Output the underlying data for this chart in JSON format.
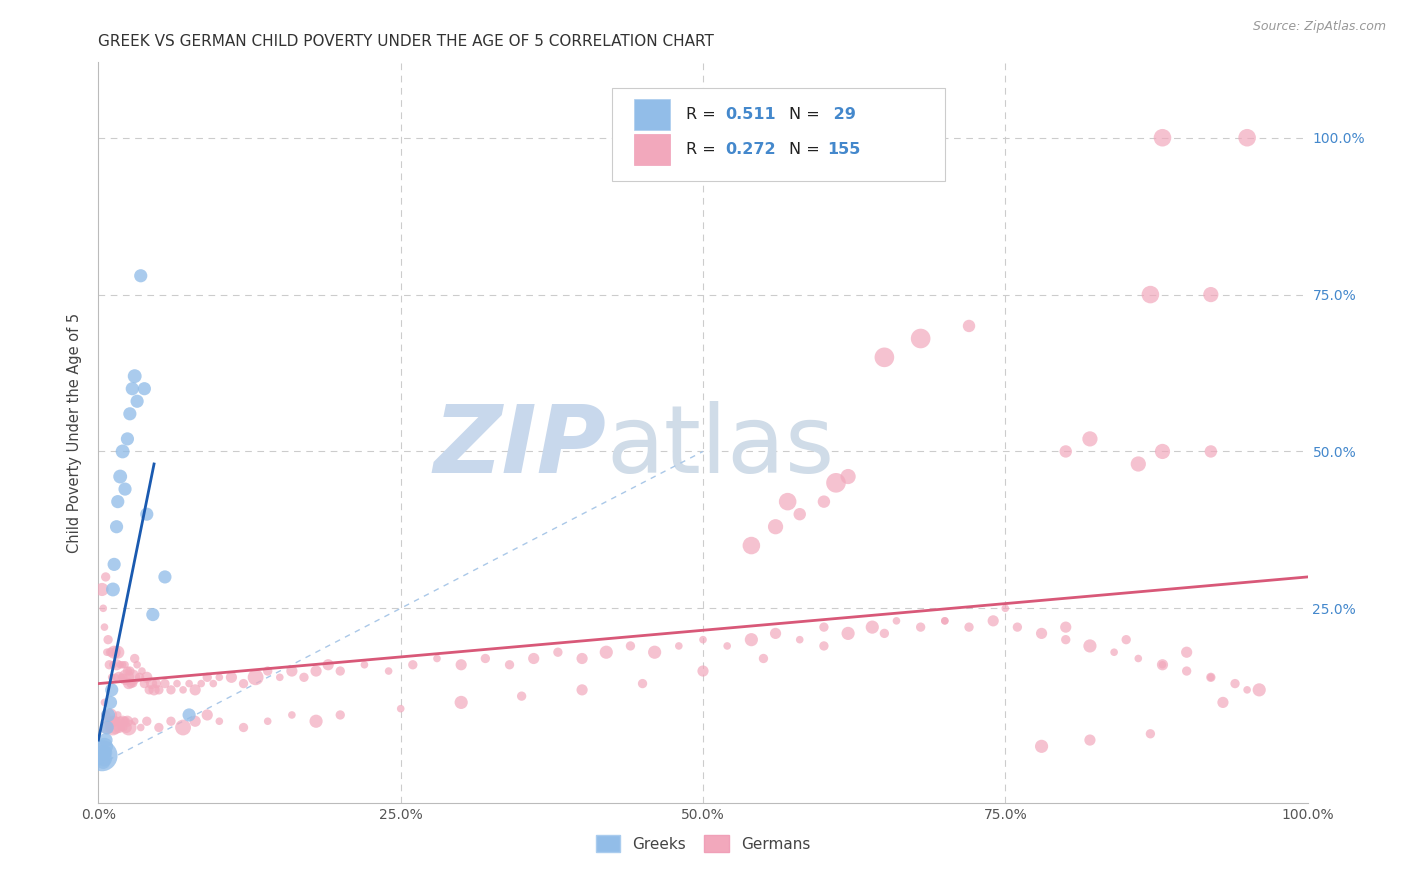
{
  "title": "GREEK VS GERMAN CHILD POVERTY UNDER THE AGE OF 5 CORRELATION CHART",
  "source": "Source: ZipAtlas.com",
  "ylabel": "Child Poverty Under the Age of 5",
  "xlim": [
    0,
    1
  ],
  "ylim": [
    -0.06,
    1.12
  ],
  "watermark_zip": "ZIP",
  "watermark_atlas": "atlas",
  "greek_R": 0.511,
  "greek_N": 29,
  "german_R": 0.272,
  "german_N": 155,
  "background_color": "#ffffff",
  "grid_color": "#cccccc",
  "blue_dot_color": "#92bde8",
  "pink_dot_color": "#f2a8bc",
  "blue_line_color": "#1a5ab0",
  "pink_line_color": "#d85878",
  "diag_line_color": "#aac8e8",
  "right_axis_color": "#4488cc",
  "title_color": "#333333",
  "title_fontsize": 11,
  "axis_label_fontsize": 10.5,
  "tick_fontsize": 10,
  "greek_x": [
    0.003,
    0.004,
    0.004,
    0.005,
    0.005,
    0.006,
    0.006,
    0.007,
    0.008,
    0.01,
    0.011,
    0.012,
    0.013,
    0.015,
    0.016,
    0.018,
    0.02,
    0.022,
    0.024,
    0.026,
    0.028,
    0.03,
    0.032,
    0.035,
    0.038,
    0.04,
    0.045,
    0.055,
    0.075
  ],
  "greek_y": [
    0.015,
    0.02,
    0.005,
    0.03,
    0.01,
    0.04,
    0.02,
    0.06,
    0.08,
    0.1,
    0.12,
    0.28,
    0.32,
    0.38,
    0.42,
    0.46,
    0.5,
    0.44,
    0.52,
    0.56,
    0.6,
    0.62,
    0.58,
    0.78,
    0.6,
    0.4,
    0.24,
    0.3,
    0.08
  ],
  "greek_sizes": [
    500,
    120,
    100,
    150,
    120,
    100,
    90,
    100,
    100,
    90,
    90,
    100,
    90,
    90,
    90,
    100,
    100,
    90,
    90,
    90,
    90,
    100,
    90,
    90,
    90,
    90,
    90,
    90,
    90
  ],
  "german_x": [
    0.003,
    0.004,
    0.005,
    0.006,
    0.007,
    0.008,
    0.009,
    0.01,
    0.011,
    0.012,
    0.013,
    0.014,
    0.015,
    0.016,
    0.017,
    0.018,
    0.019,
    0.02,
    0.021,
    0.022,
    0.023,
    0.024,
    0.025,
    0.026,
    0.027,
    0.028,
    0.029,
    0.03,
    0.032,
    0.034,
    0.036,
    0.038,
    0.04,
    0.042,
    0.044,
    0.046,
    0.048,
    0.05,
    0.055,
    0.06,
    0.065,
    0.07,
    0.075,
    0.08,
    0.085,
    0.09,
    0.095,
    0.1,
    0.11,
    0.12,
    0.13,
    0.14,
    0.15,
    0.16,
    0.17,
    0.18,
    0.19,
    0.2,
    0.22,
    0.24,
    0.26,
    0.28,
    0.3,
    0.32,
    0.34,
    0.36,
    0.38,
    0.4,
    0.42,
    0.44,
    0.46,
    0.48,
    0.5,
    0.52,
    0.54,
    0.56,
    0.58,
    0.6,
    0.62,
    0.64,
    0.66,
    0.68,
    0.7,
    0.72,
    0.74,
    0.76,
    0.78,
    0.8,
    0.82,
    0.84,
    0.86,
    0.88,
    0.9,
    0.92,
    0.94,
    0.96,
    0.005,
    0.006,
    0.007,
    0.008,
    0.009,
    0.01,
    0.011,
    0.012,
    0.013,
    0.014,
    0.015,
    0.016,
    0.017,
    0.018,
    0.019,
    0.02,
    0.021,
    0.022,
    0.023,
    0.024,
    0.025,
    0.03,
    0.035,
    0.04,
    0.05,
    0.06,
    0.07,
    0.08,
    0.09,
    0.1,
    0.12,
    0.14,
    0.16,
    0.18,
    0.2,
    0.25,
    0.3,
    0.35,
    0.4,
    0.45,
    0.5,
    0.55,
    0.6,
    0.65,
    0.7,
    0.75,
    0.8,
    0.85,
    0.9,
    0.88,
    0.92,
    0.95,
    0.93,
    0.87,
    0.82,
    0.78
  ],
  "german_y": [
    0.28,
    0.25,
    0.22,
    0.3,
    0.18,
    0.2,
    0.16,
    0.18,
    0.14,
    0.16,
    0.18,
    0.14,
    0.16,
    0.18,
    0.14,
    0.16,
    0.14,
    0.16,
    0.14,
    0.16,
    0.14,
    0.15,
    0.13,
    0.15,
    0.13,
    0.14,
    0.13,
    0.17,
    0.16,
    0.14,
    0.15,
    0.13,
    0.14,
    0.12,
    0.13,
    0.12,
    0.13,
    0.12,
    0.13,
    0.12,
    0.13,
    0.12,
    0.13,
    0.12,
    0.13,
    0.14,
    0.13,
    0.14,
    0.14,
    0.13,
    0.14,
    0.15,
    0.14,
    0.15,
    0.14,
    0.15,
    0.16,
    0.15,
    0.16,
    0.15,
    0.16,
    0.17,
    0.16,
    0.17,
    0.16,
    0.17,
    0.18,
    0.17,
    0.18,
    0.19,
    0.18,
    0.19,
    0.2,
    0.19,
    0.2,
    0.21,
    0.2,
    0.22,
    0.21,
    0.22,
    0.23,
    0.22,
    0.23,
    0.22,
    0.23,
    0.22,
    0.21,
    0.2,
    0.19,
    0.18,
    0.17,
    0.16,
    0.15,
    0.14,
    0.13,
    0.12,
    0.1,
    0.08,
    0.06,
    0.07,
    0.06,
    0.08,
    0.07,
    0.06,
    0.07,
    0.06,
    0.07,
    0.08,
    0.06,
    0.07,
    0.06,
    0.07,
    0.06,
    0.07,
    0.06,
    0.07,
    0.06,
    0.07,
    0.06,
    0.07,
    0.06,
    0.07,
    0.06,
    0.07,
    0.08,
    0.07,
    0.06,
    0.07,
    0.08,
    0.07,
    0.08,
    0.09,
    0.1,
    0.11,
    0.12,
    0.13,
    0.15,
    0.17,
    0.19,
    0.21,
    0.23,
    0.25,
    0.22,
    0.2,
    0.18,
    0.16,
    0.14,
    0.12,
    0.1,
    0.05,
    0.04,
    0.03
  ],
  "german_outlier_x": [
    0.57,
    0.61,
    0.65,
    0.68,
    0.72,
    0.87,
    0.92,
    0.88,
    0.95,
    0.92
  ],
  "german_outlier_y": [
    0.42,
    0.45,
    0.65,
    0.68,
    0.7,
    0.75,
    0.75,
    1.0,
    1.0,
    0.5
  ],
  "german_mid_x": [
    0.54,
    0.56,
    0.58,
    0.6,
    0.62,
    0.8,
    0.82,
    0.86,
    0.88
  ],
  "german_mid_y": [
    0.35,
    0.38,
    0.4,
    0.42,
    0.46,
    0.5,
    0.52,
    0.48,
    0.5
  ]
}
